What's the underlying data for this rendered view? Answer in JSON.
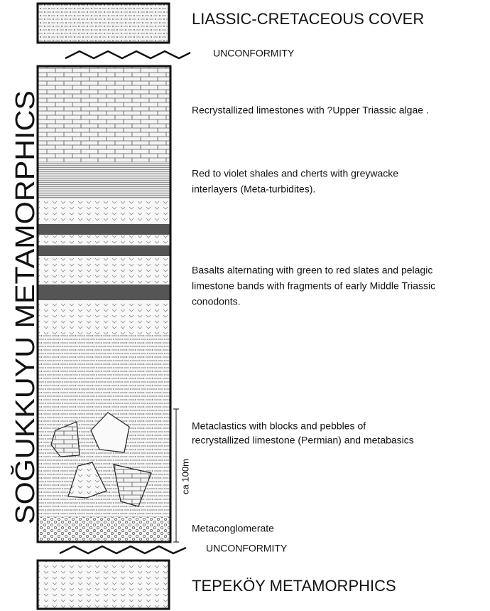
{
  "cover": {
    "label": "LIASSIC-CRETACEOUS COVER"
  },
  "unconformity_top": "UNCONFORMITY",
  "column": {
    "name": "SOĞUKKUYU METAMORPHICS",
    "units": [
      {
        "lines": [
          "Recrystallized limestones with ?Upper Triassic algae ."
        ]
      },
      {
        "lines": [
          "Red to violet shales and cherts with greywacke",
          "interlayers (Meta-turbidites)."
        ]
      },
      {
        "lines": [
          "Basalts alternating with green to red slates and pelagic",
          "limestone bands with fragments of early Middle Triassic",
          "conodonts."
        ]
      },
      {
        "lines": [
          "Metaclastics with blocks and pebbles of",
          "recrystallized limestone (Permian) and metabasics"
        ]
      },
      {
        "lines": [
          "Metaconglomerate"
        ]
      }
    ],
    "scale_label": "ca 100m"
  },
  "unconformity_bottom": "UNCONFORMITY",
  "basement": {
    "label": "TEPEKÖY METAMORPHICS"
  }
}
